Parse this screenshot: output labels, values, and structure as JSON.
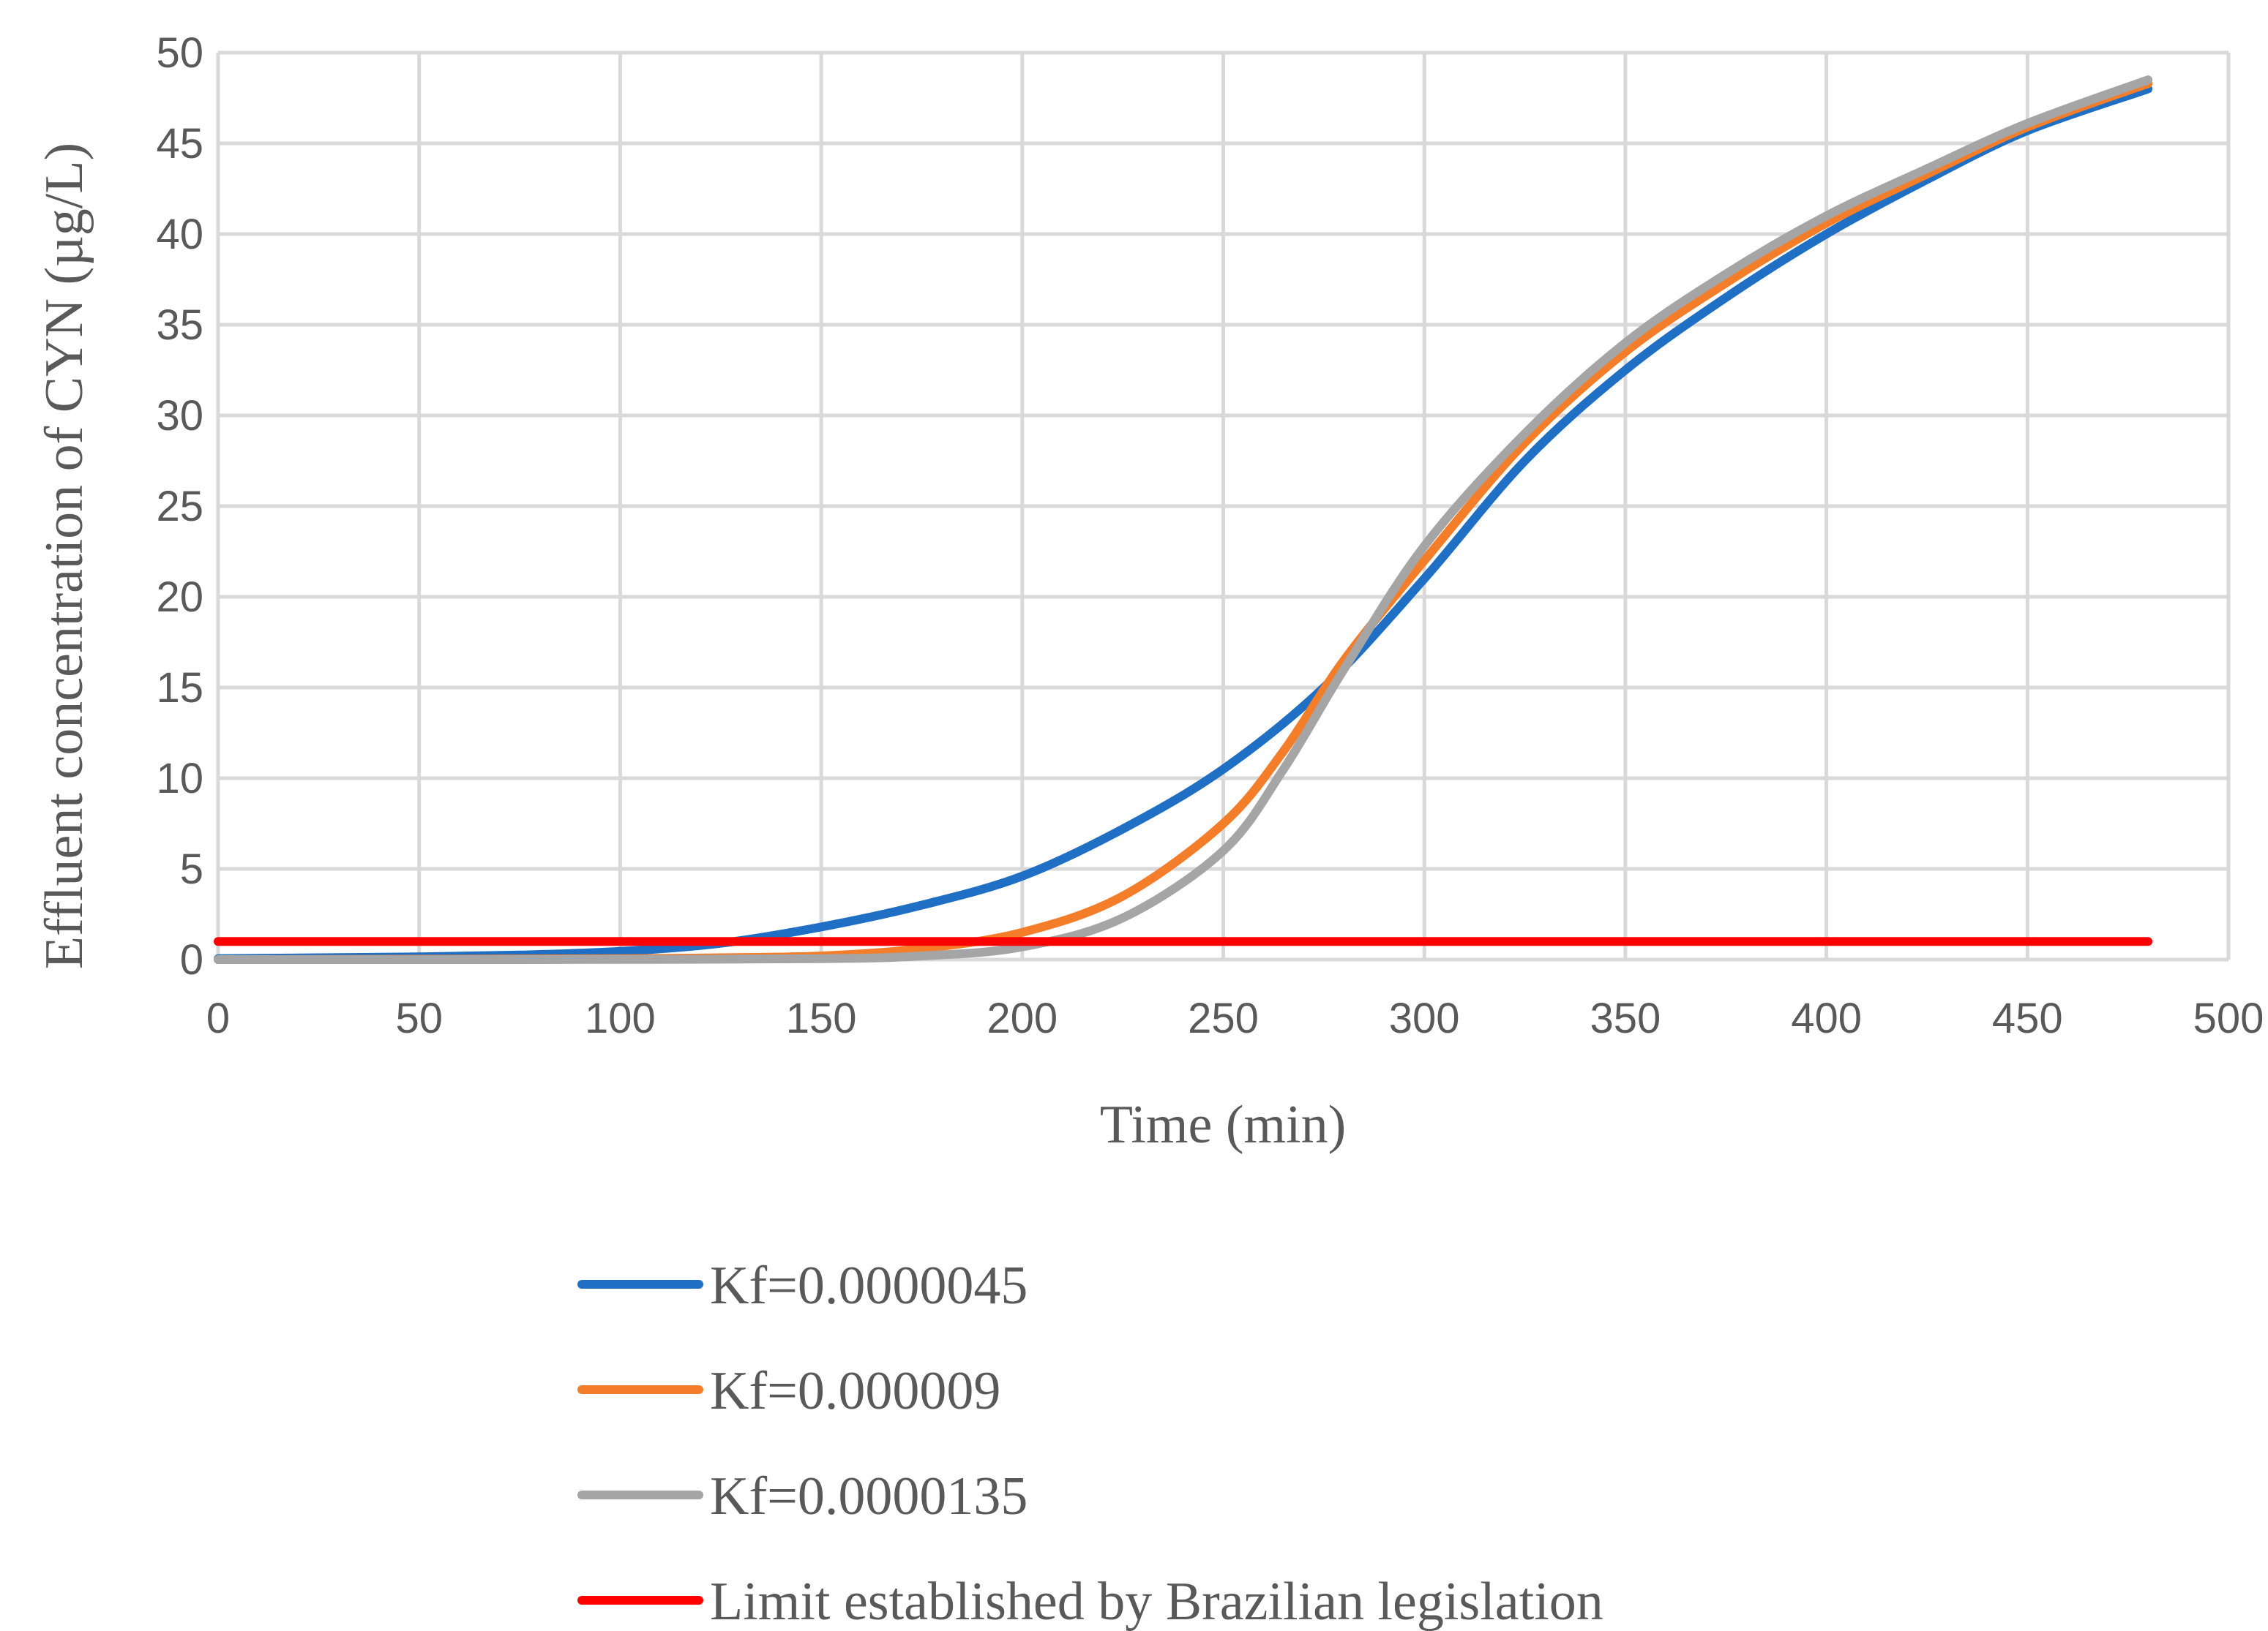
{
  "chart_data": {
    "type": "line",
    "title": "",
    "xlabel": "Time (min)",
    "ylabel": "Effluent concentration of CYN (µg/L)",
    "xlim": [
      0,
      500
    ],
    "ylim": [
      0,
      50
    ],
    "x_ticks": [
      0,
      50,
      100,
      150,
      200,
      250,
      300,
      350,
      400,
      450,
      500
    ],
    "y_ticks": [
      0,
      5,
      10,
      15,
      20,
      25,
      30,
      35,
      40,
      45,
      50
    ],
    "grid": true,
    "legend_position": "bottom",
    "series": [
      {
        "name": "Kf=0.0000045",
        "color": "#1f6fc5",
        "points": [
          [
            0,
            0.05
          ],
          [
            25,
            0.1
          ],
          [
            50,
            0.15
          ],
          [
            75,
            0.25
          ],
          [
            100,
            0.45
          ],
          [
            125,
            0.9
          ],
          [
            150,
            1.8
          ],
          [
            175,
            3.0
          ],
          [
            200,
            4.6
          ],
          [
            225,
            7.2
          ],
          [
            250,
            10.5
          ],
          [
            275,
            15.0
          ],
          [
            300,
            21.0
          ],
          [
            325,
            27.5
          ],
          [
            350,
            32.5
          ],
          [
            375,
            36.5
          ],
          [
            400,
            40.0
          ],
          [
            425,
            43.0
          ],
          [
            450,
            45.7
          ],
          [
            480,
            48.0
          ]
        ]
      },
      {
        "name": "Kf=0.000009",
        "color": "#f47d2a",
        "points": [
          [
            0,
            0.0
          ],
          [
            50,
            0.02
          ],
          [
            100,
            0.05
          ],
          [
            125,
            0.1
          ],
          [
            150,
            0.2
          ],
          [
            175,
            0.6
          ],
          [
            200,
            1.5
          ],
          [
            225,
            3.5
          ],
          [
            250,
            7.5
          ],
          [
            265,
            11.5
          ],
          [
            280,
            16.5
          ],
          [
            300,
            22.0
          ],
          [
            325,
            28.5
          ],
          [
            350,
            33.5
          ],
          [
            375,
            37.3
          ],
          [
            400,
            40.6
          ],
          [
            425,
            43.3
          ],
          [
            450,
            45.9
          ],
          [
            480,
            48.3
          ]
        ]
      },
      {
        "name": "Kf=0.0000135",
        "color": "#a5a5a5",
        "points": [
          [
            0,
            0.0
          ],
          [
            50,
            0.0
          ],
          [
            100,
            0.01
          ],
          [
            150,
            0.05
          ],
          [
            175,
            0.2
          ],
          [
            200,
            0.7
          ],
          [
            225,
            2.3
          ],
          [
            250,
            6.0
          ],
          [
            265,
            10.5
          ],
          [
            280,
            16.0
          ],
          [
            300,
            22.8
          ],
          [
            325,
            29.0
          ],
          [
            350,
            34.0
          ],
          [
            375,
            37.8
          ],
          [
            400,
            41.0
          ],
          [
            425,
            43.6
          ],
          [
            450,
            46.1
          ],
          [
            480,
            48.5
          ]
        ]
      },
      {
        "name": "Limit established by Brazilian legislation",
        "color": "#ff0000",
        "points": [
          [
            0,
            1.0
          ],
          [
            480,
            1.0
          ]
        ]
      }
    ]
  }
}
